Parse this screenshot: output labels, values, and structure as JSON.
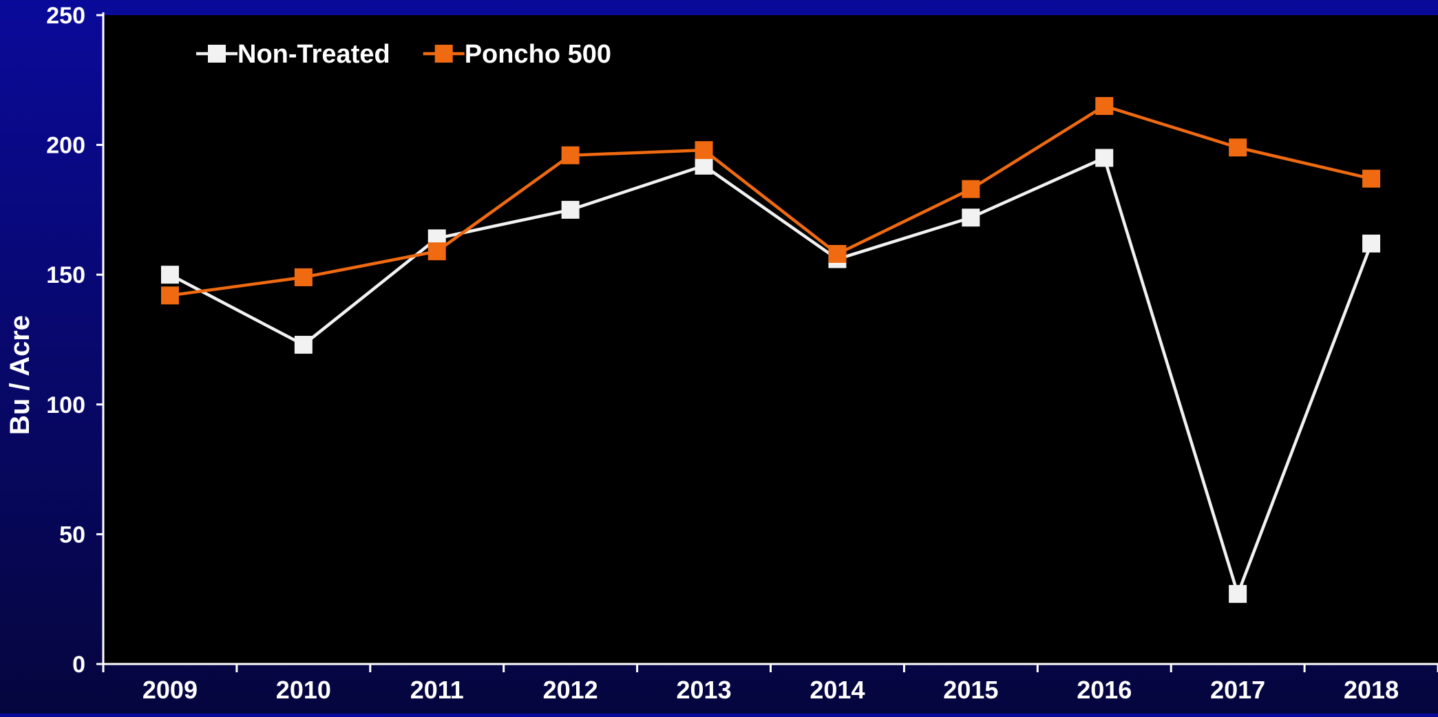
{
  "chart_data": {
    "type": "line",
    "title": "",
    "xlabel": "",
    "ylabel": "Bu / Acre",
    "categories": [
      "2009",
      "2010",
      "2011",
      "2012",
      "2013",
      "2014",
      "2015",
      "2016",
      "2017",
      "2018"
    ],
    "ylim": [
      0,
      250
    ],
    "yticks": [
      0,
      50,
      100,
      150,
      200,
      250
    ],
    "grid": false,
    "legend_position": "top-left",
    "series": [
      {
        "name": "Non-Treated",
        "color": "#f2f2f2",
        "values": [
          150,
          123,
          164,
          175,
          192,
          156,
          172,
          195,
          27,
          162
        ]
      },
      {
        "name": "Poncho 500",
        "color": "#ef6a10",
        "values": [
          142,
          149,
          159,
          196,
          198,
          158,
          183,
          215,
          199,
          187
        ]
      }
    ]
  },
  "colors": {
    "plot_background": "#000000",
    "axis": "#ffffff",
    "text": "#ffffff"
  }
}
